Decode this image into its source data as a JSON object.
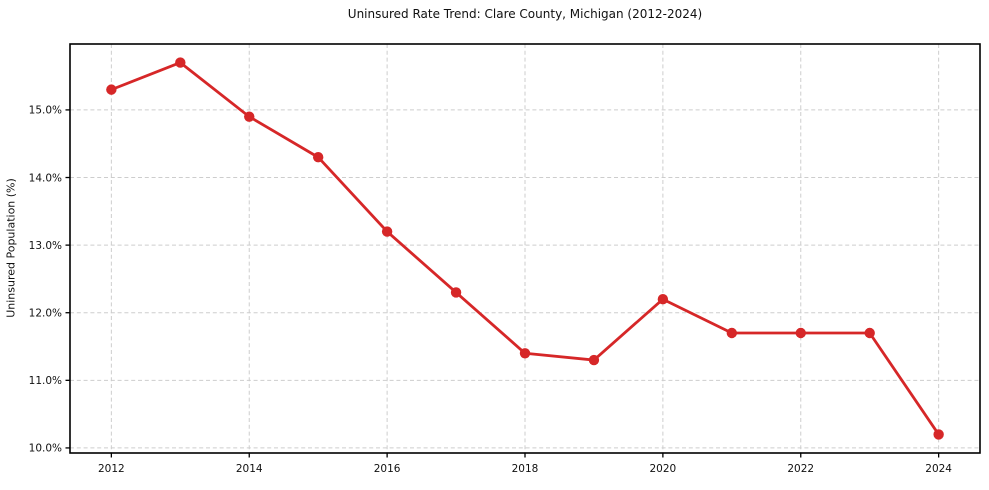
{
  "chart_data": {
    "type": "line",
    "title": "Uninsured Rate Trend: Clare County, Michigan (2012-2024)",
    "xlabel": "",
    "ylabel": "Uninsured Population (%)",
    "x": [
      2012,
      2013,
      2014,
      2015,
      2016,
      2017,
      2018,
      2019,
      2020,
      2021,
      2022,
      2023,
      2024
    ],
    "values": [
      15.3,
      15.7,
      14.9,
      14.3,
      13.2,
      12.3,
      11.4,
      11.3,
      12.2,
      11.7,
      11.7,
      11.7,
      10.2
    ],
    "xticks": [
      {
        "value": 2012,
        "label": "2012"
      },
      {
        "value": 2014,
        "label": "2014"
      },
      {
        "value": 2016,
        "label": "2016"
      },
      {
        "value": 2018,
        "label": "2018"
      },
      {
        "value": 2020,
        "label": "2020"
      },
      {
        "value": 2022,
        "label": "2022"
      },
      {
        "value": 2024,
        "label": "2024"
      }
    ],
    "yticks": [
      {
        "value": 10,
        "label": "10.0%"
      },
      {
        "value": 11,
        "label": "11.0%"
      },
      {
        "value": 12,
        "label": "12.0%"
      },
      {
        "value": 13,
        "label": "13.0%"
      },
      {
        "value": 14,
        "label": "14.0%"
      },
      {
        "value": 15,
        "label": "15.0%"
      }
    ],
    "xlim": [
      2011.4,
      2024.6
    ],
    "ylim": [
      9.925,
      15.975
    ],
    "grid": true,
    "legend": "none",
    "marker": "circle",
    "line_color": "#d62728",
    "grid_color": "#cdcdcd",
    "spine_color": "#000000",
    "background_color": "#ffffff"
  }
}
